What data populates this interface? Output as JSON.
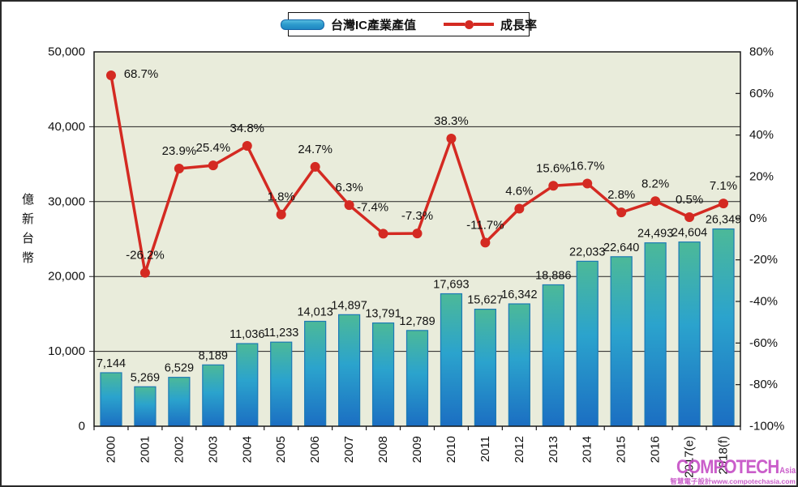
{
  "legend": {
    "bar_label": "台灣IC產業產值",
    "line_label": "成長率"
  },
  "watermark": {
    "brand": "COMPOTECH",
    "brand_suffix": "Asia",
    "tagline": "智慧電子設計www.compotechasia.com",
    "color": "#c348c3"
  },
  "colors": {
    "plot_bg": "#e9ecdb",
    "frame": "#1a1a1a",
    "grid": "#222222",
    "bar_top": "#4cb998",
    "bar_mid": "#2ba3cd",
    "bar_bottom": "#1b6ec2",
    "bar_border": "#1d7ab5",
    "line": "#d42a22",
    "text": "#111111"
  },
  "chart_data": {
    "type": "bar",
    "title": "",
    "ylabel_left": "億新台幣",
    "legend_position": "top-center",
    "grid": true,
    "categories": [
      "2000",
      "2001",
      "2002",
      "2003",
      "2004",
      "2005",
      "2006",
      "2007",
      "2008",
      "2009",
      "2010",
      "2011",
      "2012",
      "2013",
      "2014",
      "2015",
      "2016",
      "2017(e)",
      "2018(f)"
    ],
    "series": [
      {
        "name": "台灣IC產業產值",
        "type": "bar",
        "axis": "left",
        "values": [
          7144,
          5269,
          6529,
          8189,
          11036,
          11233,
          14013,
          14897,
          13791,
          12789,
          17693,
          15627,
          16342,
          18886,
          22033,
          22640,
          24493,
          24604,
          26349
        ],
        "labels": [
          "7,144",
          "5,269",
          "6,529",
          "8,189",
          "11,036",
          "11,233",
          "14,013",
          "14,897",
          "13,791",
          "12,789",
          "17,693",
          "15,627",
          "16,342",
          "18,886",
          "22,033",
          "22,640",
          "24,493",
          "24,604",
          "26,349"
        ]
      },
      {
        "name": "成長率",
        "type": "line",
        "axis": "right",
        "values": [
          68.7,
          -26.2,
          23.9,
          25.4,
          34.8,
          1.8,
          24.7,
          6.3,
          -7.4,
          -7.3,
          38.3,
          -11.7,
          4.6,
          15.6,
          16.7,
          2.8,
          8.2,
          0.5,
          7.1
        ],
        "labels": [
          "68.7%",
          "-26.2%",
          "23.9%",
          "25.4%",
          "34.8%",
          "1.8%",
          "24.7%",
          "6.3%",
          "-7.4%",
          "-7.3%",
          "38.3%",
          "-11.7%",
          "4.6%",
          "15.6%",
          "16.7%",
          "2.8%",
          "8.2%",
          "0.5%",
          "7.1%"
        ]
      }
    ],
    "left_axis": {
      "min": 0,
      "max": 50000,
      "ticks": [
        0,
        10000,
        20000,
        30000,
        40000,
        50000
      ],
      "tick_labels": [
        "0",
        "10,000",
        "20,000",
        "30,000",
        "40,000",
        "50,000"
      ]
    },
    "right_axis": {
      "min": -100,
      "max": 80,
      "ticks": [
        80,
        60,
        40,
        20,
        0,
        -20,
        -40,
        -60,
        -80,
        -100
      ],
      "tick_labels": [
        "80%",
        "60%",
        "40%",
        "20%",
        "0%",
        "-20%",
        "-40%",
        "-60%",
        "-80%",
        "-100%"
      ]
    },
    "grid_values": [
      10000,
      20000,
      30000,
      40000
    ],
    "label_offsets": {
      "0": [
        37,
        20
      ],
      "8": [
        -13,
        -11
      ]
    }
  }
}
